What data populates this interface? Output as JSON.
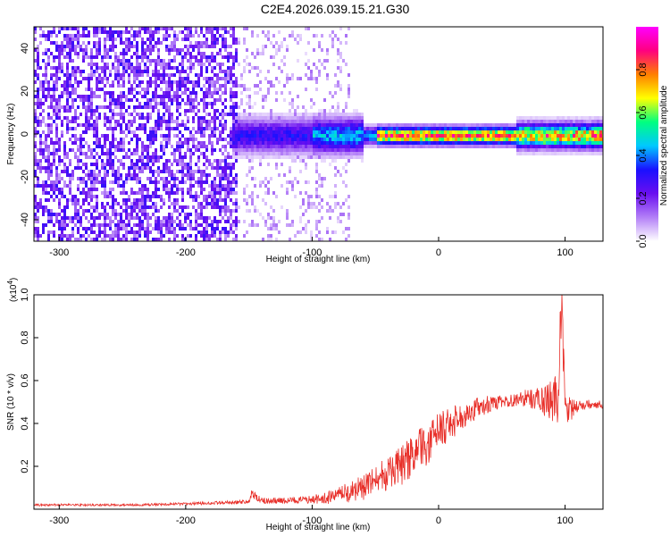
{
  "figure": {
    "title": "C2E4.2026.039.15.21.G30"
  },
  "colors": {
    "snr_line": "#e8302a",
    "ridge_core": "#d9253a",
    "background": "#ffffff",
    "colorbar_stops": [
      "#ffffff",
      "#b37ff7",
      "#6a0ff0",
      "#1a10ff",
      "#00c8ff",
      "#00ff80",
      "#ffff00",
      "#ff7f00",
      "#ff0080",
      "#ff00ff"
    ]
  },
  "chart_data": [
    {
      "type": "heatmap",
      "xlabel": "Height of straight line (km)",
      "ylabel": "Frequency (Hz)",
      "xlim": [
        -320,
        130
      ],
      "ylim": [
        -50,
        50
      ],
      "xticks": [
        -300,
        -200,
        -100,
        0,
        100
      ],
      "yticks": [
        -40,
        -20,
        0,
        20,
        40
      ],
      "colorbar": {
        "label": "Normalized spectral amplitude",
        "range": [
          0.0,
          1.0
        ],
        "ticks": [
          0.0,
          0.2,
          0.4,
          0.6,
          0.8
        ]
      },
      "regions": [
        {
          "x": [
            -320,
            -160
          ],
          "description_level": "broadband noise",
          "mean_amplitude": 0.2
        },
        {
          "x": [
            -160,
            -70
          ],
          "description_level": "sparse noise",
          "mean_amplitude": 0.08
        },
        {
          "x": [
            -165,
            130
          ],
          "frequency_center": 0,
          "mean_amplitude": 0.9
        }
      ],
      "grid": false
    },
    {
      "type": "line",
      "xlabel": "Height of straight line (km)",
      "ylabel": "SNR (10 * v/v)",
      "y_multiplier": "(x10",
      "y_multiplier_exp": "4",
      "xlim": [
        -320,
        130
      ],
      "ylim": [
        0,
        1.0
      ],
      "xticks": [
        -300,
        -200,
        -100,
        0,
        100
      ],
      "yticks": [
        0.2,
        0.4,
        0.6,
        0.8,
        1.0
      ],
      "series": [
        {
          "x": [
            -320,
            -280,
            -240,
            -200,
            -170,
            -150,
            -148,
            -140,
            -120,
            -100,
            -80,
            -70,
            -60,
            -50,
            -40,
            -30,
            -20,
            -10,
            0,
            10,
            20,
            30,
            40,
            50,
            60,
            70,
            80,
            90,
            95,
            97,
            100,
            110,
            120,
            130
          ],
          "y": [
            0.02,
            0.02,
            0.02,
            0.025,
            0.03,
            0.035,
            0.07,
            0.04,
            0.04,
            0.045,
            0.06,
            0.08,
            0.1,
            0.13,
            0.17,
            0.2,
            0.25,
            0.3,
            0.36,
            0.4,
            0.44,
            0.47,
            0.49,
            0.5,
            0.51,
            0.52,
            0.51,
            0.5,
            0.55,
            1.0,
            0.45,
            0.48,
            0.49,
            0.49
          ],
          "noise": [
            0.005,
            0.005,
            0.005,
            0.006,
            0.008,
            0.01,
            0.02,
            0.015,
            0.015,
            0.02,
            0.04,
            0.05,
            0.06,
            0.07,
            0.08,
            0.09,
            0.1,
            0.1,
            0.09,
            0.08,
            0.06,
            0.05,
            0.04,
            0.03,
            0.03,
            0.04,
            0.06,
            0.1,
            0.15,
            0.2,
            0.08,
            0.03,
            0.02,
            0.02
          ]
        }
      ],
      "grid": false
    }
  ]
}
